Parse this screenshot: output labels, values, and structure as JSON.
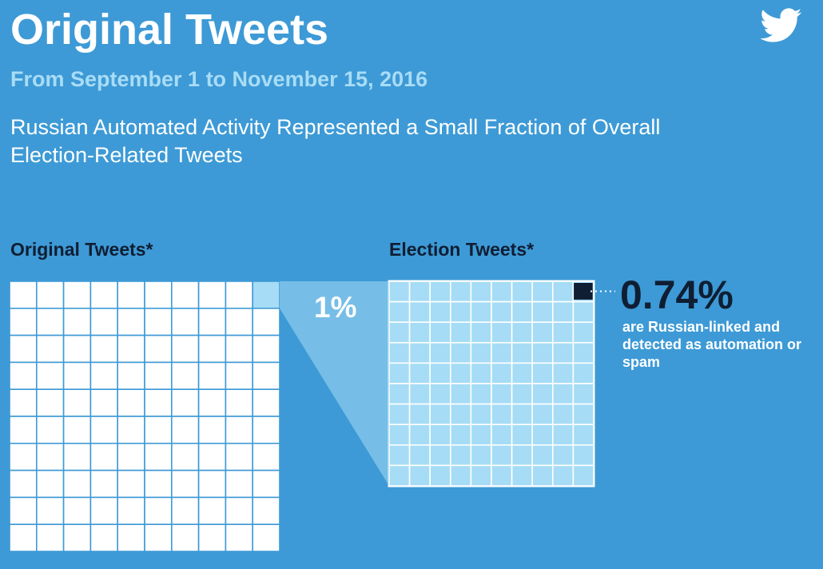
{
  "title": "Original Tweets",
  "subtitle": "From September 1 to November 15, 2016",
  "headline": "Russian Automated Activity Represented a Small Fraction of Overall Election-Related Tweets",
  "logo_icon": "twitter-bird-icon",
  "colors": {
    "background": "#3d9ad6",
    "grid_white": "#ffffff",
    "grid_light": "#a6dcf5",
    "dark": "#0f1e33",
    "subtitle": "#a8dcf6"
  },
  "chart_data": [
    {
      "type": "waffle",
      "title": "Original Tweets*",
      "grid": [
        10,
        10
      ],
      "highlight_percent": 1,
      "highlight_label": "1%"
    },
    {
      "type": "waffle",
      "title": "Election Tweets*",
      "grid": [
        10,
        10
      ],
      "highlight_percent": 0.74,
      "highlight_label": "0.74%",
      "highlight_description": "are Russian-linked and detected as automation or spam"
    }
  ]
}
